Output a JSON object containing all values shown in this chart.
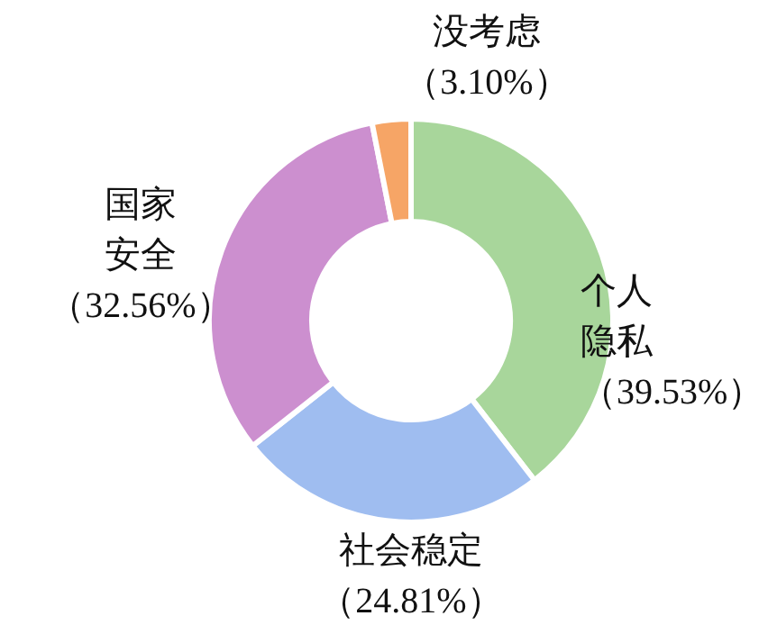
{
  "chart_data": {
    "type": "donut",
    "categories": [
      "个人隐私",
      "社会稳定",
      "国家安全",
      "没考虑"
    ],
    "values": [
      39.53,
      24.81,
      32.56,
      3.1
    ],
    "value_labels": [
      "（39.53%）",
      "（24.81%）",
      "（32.56%）",
      "（3.10%）"
    ],
    "colors": [
      "#a8d69b",
      "#9fbdf0",
      "#cc8fcf",
      "#f6a566"
    ]
  }
}
